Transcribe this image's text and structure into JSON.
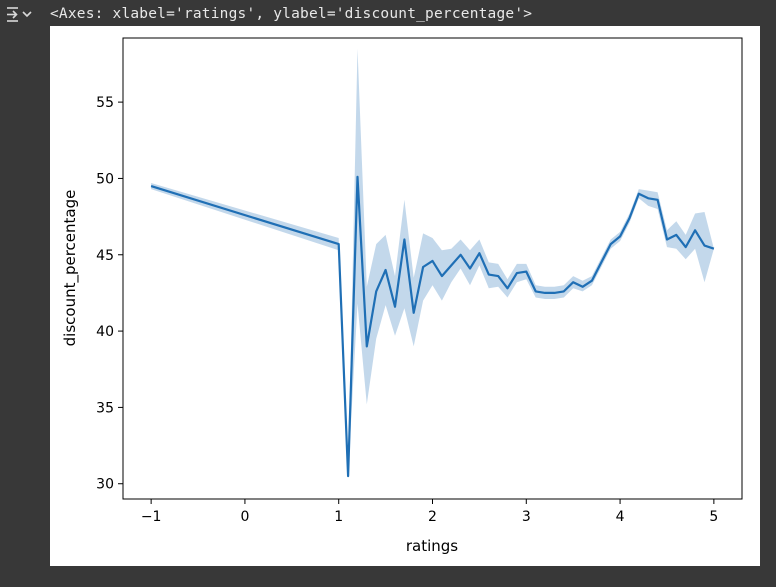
{
  "output": {
    "repr_text": "<Axes: xlabel='ratings', ylabel='discount_percentage'>",
    "icon": "output-expand-icon"
  },
  "colors": {
    "page_background": "#383838",
    "figure_background": "#ffffff",
    "line": "#1f6fb5",
    "confidence_band": "#b9d1e8"
  },
  "chart_data": {
    "type": "line",
    "title": "",
    "xlabel": "ratings",
    "ylabel": "discount_percentage",
    "xlim": [
      -1.3,
      5.3
    ],
    "ylim": [
      29.0,
      59.2
    ],
    "xticks": [
      -1,
      0,
      1,
      2,
      3,
      4,
      5
    ],
    "xtick_labels": [
      "−1",
      "0",
      "1",
      "2",
      "3",
      "4",
      "5"
    ],
    "yticks": [
      30,
      35,
      40,
      45,
      50,
      55
    ],
    "ytick_labels": [
      "30",
      "35",
      "40",
      "45",
      "50",
      "55"
    ],
    "grid": false,
    "legend": "none",
    "series": [
      {
        "x": [
          -1.0,
          1.0,
          1.1,
          1.2,
          1.3,
          1.4,
          1.5,
          1.6,
          1.7,
          1.8,
          1.9,
          2.0,
          2.1,
          2.2,
          2.3,
          2.4,
          2.5,
          2.6,
          2.7,
          2.8,
          2.9,
          3.0,
          3.1,
          3.2,
          3.3,
          3.4,
          3.5,
          3.6,
          3.7,
          3.8,
          3.9,
          4.0,
          4.1,
          4.2,
          4.3,
          4.4,
          4.5,
          4.6,
          4.7,
          4.8,
          4.9,
          5.0
        ],
        "y": [
          49.5,
          45.7,
          30.5,
          50.1,
          39.0,
          42.6,
          44.0,
          41.6,
          46.0,
          41.2,
          44.2,
          44.6,
          43.6,
          44.3,
          45.0,
          44.1,
          45.1,
          43.7,
          43.6,
          42.8,
          43.8,
          43.9,
          42.6,
          42.5,
          42.5,
          42.6,
          43.2,
          42.9,
          43.3,
          44.5,
          45.7,
          46.2,
          47.4,
          49.0,
          48.7,
          48.6,
          46.0,
          46.3,
          45.5,
          46.6,
          45.6,
          45.4
        ],
        "lower": [
          49.3,
          45.3,
          30.5,
          41.8,
          35.2,
          39.5,
          41.7,
          39.7,
          41.5,
          39.0,
          42.0,
          43.0,
          42.0,
          43.2,
          44.1,
          43.0,
          44.3,
          42.8,
          42.9,
          42.2,
          43.2,
          43.4,
          42.2,
          42.1,
          42.1,
          42.2,
          42.8,
          42.6,
          43.0,
          44.2,
          45.4,
          45.9,
          47.1,
          48.7,
          48.2,
          48.0,
          45.5,
          45.4,
          44.7,
          45.4,
          43.2,
          45.4
        ],
        "upper": [
          49.7,
          46.1,
          30.5,
          58.5,
          42.9,
          45.7,
          46.3,
          43.6,
          48.6,
          43.5,
          46.4,
          46.1,
          45.3,
          45.4,
          46.0,
          45.3,
          46.0,
          44.5,
          44.4,
          43.4,
          44.4,
          44.4,
          43.0,
          42.9,
          42.9,
          43.0,
          43.6,
          43.3,
          43.6,
          44.8,
          46.0,
          46.5,
          47.7,
          49.3,
          49.2,
          49.1,
          46.6,
          47.2,
          46.3,
          47.7,
          47.8,
          45.4
        ]
      }
    ]
  }
}
